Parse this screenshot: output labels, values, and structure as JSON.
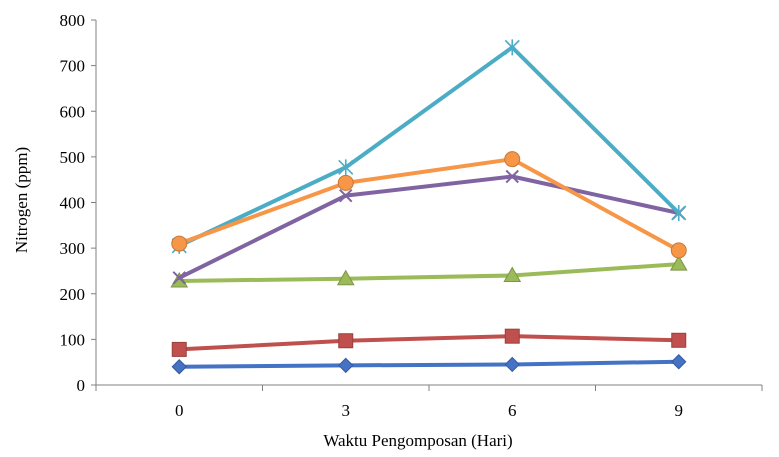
{
  "chart_data": {
    "type": "line",
    "title": "",
    "xlabel": "Waktu Pengomposan (Hari)",
    "ylabel": "Nitrogen (ppm)",
    "categories": [
      "0",
      "3",
      "6",
      "9"
    ],
    "ylim": [
      0,
      800
    ],
    "yticks": [
      0,
      100,
      200,
      300,
      400,
      500,
      600,
      700,
      800
    ],
    "grid": false,
    "legend": "none",
    "series": [
      {
        "color": "#4472C4",
        "marker": "diamond",
        "values": [
          40,
          43,
          45,
          51
        ]
      },
      {
        "color": "#C0504D",
        "marker": "square",
        "values": [
          78,
          97,
          107,
          98
        ]
      },
      {
        "color": "#9BBB59",
        "marker": "triangle",
        "values": [
          228,
          233,
          240,
          265
        ]
      },
      {
        "color": "#8064A2",
        "marker": "x",
        "values": [
          235,
          415,
          457,
          377
        ]
      },
      {
        "color": "#4BACC6",
        "marker": "star",
        "values": [
          305,
          477,
          740,
          377
        ]
      },
      {
        "color": "#F79646",
        "marker": "circle",
        "values": [
          310,
          443,
          495,
          295
        ]
      }
    ]
  }
}
